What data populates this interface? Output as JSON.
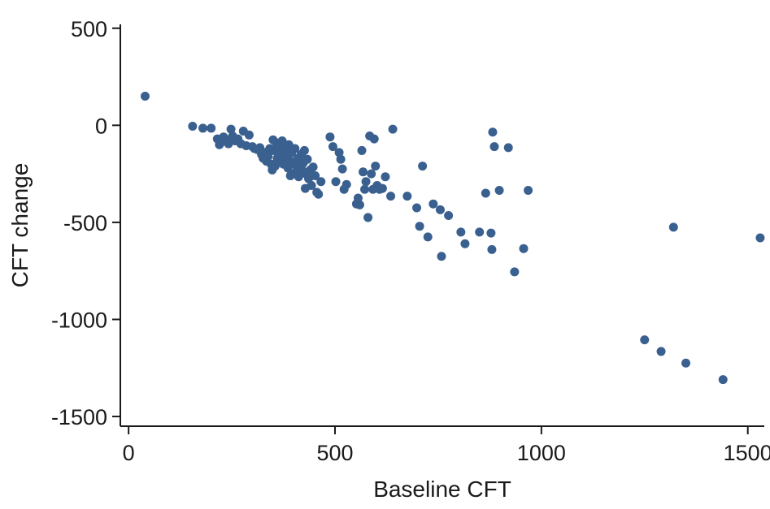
{
  "chart_data": {
    "type": "scatter",
    "title": "",
    "xlabel": "Baseline CFT",
    "ylabel": "CFT change",
    "xlim": [
      -20,
      1540
    ],
    "ylim": [
      -1550,
      520
    ],
    "x_ticks": [
      0,
      500,
      1000,
      1500
    ],
    "y_ticks": [
      500,
      0,
      -500,
      -1000,
      -1500
    ],
    "x_tick_labels": [
      "0",
      "500",
      "1000",
      "1500"
    ],
    "y_tick_labels": [
      "500",
      "0",
      "-500",
      "-1000",
      "-1500"
    ],
    "grid": false,
    "legend": "none",
    "marker_color": "#3a6090",
    "series": [
      {
        "points": [
          [
            40,
            150
          ],
          [
            155,
            -5
          ],
          [
            180,
            -15
          ],
          [
            200,
            -15
          ],
          [
            215,
            -70
          ],
          [
            220,
            -100
          ],
          [
            225,
            -85
          ],
          [
            230,
            -60
          ],
          [
            238,
            -75
          ],
          [
            242,
            -95
          ],
          [
            248,
            -20
          ],
          [
            252,
            -55
          ],
          [
            258,
            -80
          ],
          [
            265,
            -70
          ],
          [
            272,
            -95
          ],
          [
            278,
            -30
          ],
          [
            285,
            -105
          ],
          [
            292,
            -50
          ],
          [
            300,
            -110
          ],
          [
            305,
            -120
          ],
          [
            312,
            -125
          ],
          [
            318,
            -115
          ],
          [
            322,
            -150
          ],
          [
            326,
            -170
          ],
          [
            330,
            -140
          ],
          [
            334,
            -185
          ],
          [
            338,
            -160
          ],
          [
            342,
            -120
          ],
          [
            345,
            -200
          ],
          [
            348,
            -230
          ],
          [
            350,
            -75
          ],
          [
            352,
            -130
          ],
          [
            355,
            -210
          ],
          [
            358,
            -90
          ],
          [
            360,
            -170
          ],
          [
            362,
            -110
          ],
          [
            365,
            -190
          ],
          [
            368,
            -160
          ],
          [
            370,
            -140
          ],
          [
            372,
            -80
          ],
          [
            375,
            -200
          ],
          [
            378,
            -120
          ],
          [
            380,
            -170
          ],
          [
            383,
            -150
          ],
          [
            386,
            -220
          ],
          [
            388,
            -100
          ],
          [
            390,
            -180
          ],
          [
            392,
            -260
          ],
          [
            395,
            -140
          ],
          [
            398,
            -250
          ],
          [
            400,
            -200
          ],
          [
            403,
            -120
          ],
          [
            406,
            -240
          ],
          [
            410,
            -170
          ],
          [
            412,
            -265
          ],
          [
            415,
            -210
          ],
          [
            418,
            -150
          ],
          [
            420,
            -230
          ],
          [
            423,
            -195
          ],
          [
            426,
            -130
          ],
          [
            428,
            -325
          ],
          [
            430,
            -250
          ],
          [
            433,
            -175
          ],
          [
            436,
            -275
          ],
          [
            440,
            -230
          ],
          [
            443,
            -310
          ],
          [
            447,
            -215
          ],
          [
            452,
            -260
          ],
          [
            456,
            -345
          ],
          [
            460,
            -355
          ],
          [
            466,
            -290
          ],
          [
            488,
            -60
          ],
          [
            495,
            -110
          ],
          [
            502,
            -290
          ],
          [
            510,
            -140
          ],
          [
            514,
            -175
          ],
          [
            518,
            -225
          ],
          [
            522,
            -330
          ],
          [
            528,
            -305
          ],
          [
            552,
            -405
          ],
          [
            556,
            -375
          ],
          [
            560,
            -410
          ],
          [
            565,
            -130
          ],
          [
            568,
            -240
          ],
          [
            572,
            -330
          ],
          [
            575,
            -290
          ],
          [
            580,
            -475
          ],
          [
            584,
            -55
          ],
          [
            588,
            -250
          ],
          [
            592,
            -330
          ],
          [
            595,
            -70
          ],
          [
            598,
            -210
          ],
          [
            602,
            -310
          ],
          [
            608,
            -330
          ],
          [
            615,
            -325
          ],
          [
            622,
            -265
          ],
          [
            635,
            -365
          ],
          [
            640,
            -20
          ],
          [
            675,
            -365
          ],
          [
            698,
            -425
          ],
          [
            705,
            -520
          ],
          [
            712,
            -210
          ],
          [
            725,
            -575
          ],
          [
            738,
            -405
          ],
          [
            755,
            -435
          ],
          [
            758,
            -675
          ],
          [
            775,
            -465
          ],
          [
            805,
            -550
          ],
          [
            815,
            -610
          ],
          [
            850,
            -550
          ],
          [
            865,
            -350
          ],
          [
            878,
            -555
          ],
          [
            880,
            -640
          ],
          [
            882,
            -35
          ],
          [
            886,
            -110
          ],
          [
            898,
            -335
          ],
          [
            920,
            -115
          ],
          [
            935,
            -755
          ],
          [
            957,
            -635
          ],
          [
            968,
            -335
          ],
          [
            1250,
            -1105
          ],
          [
            1290,
            -1165
          ],
          [
            1320,
            -525
          ],
          [
            1350,
            -1225
          ],
          [
            1440,
            -1310
          ],
          [
            1530,
            -580
          ]
        ]
      }
    ]
  }
}
